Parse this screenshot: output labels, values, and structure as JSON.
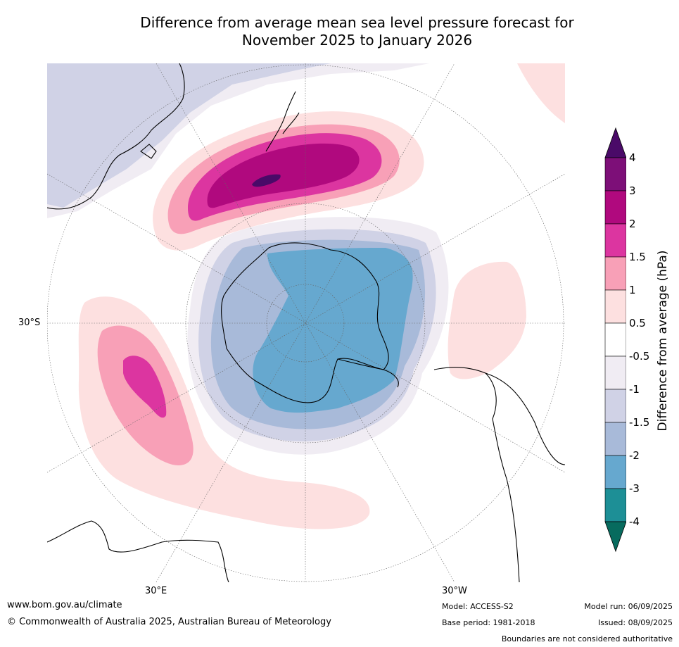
{
  "title": {
    "line1": "Difference from average mean sea level pressure forecast for",
    "line2": "November 2025 to January 2026"
  },
  "map": {
    "projection": "south-polar stereographic",
    "graticule_labels": {
      "lat_left": "30°S",
      "lon_bottom_left": "30°E",
      "lon_bottom_right": "30°W"
    }
  },
  "colorbar": {
    "title": "Difference from average (hPa)",
    "ticks": [
      "4",
      "3",
      "2",
      "1.5",
      "1",
      "0.5",
      "-0.5",
      "-1",
      "-1.5",
      "-2",
      "-3",
      "-4"
    ],
    "colors": {
      "gt4": "#4a0a68",
      "3_to_4": "#7d0f78",
      "2_to_3": "#b0097e",
      "1.5_to_2": "#dc35a0",
      "1_to_1.5": "#f8a0b7",
      "0.5_to_1": "#fde0e0",
      "-0.5_to_0.5": "#ffffff",
      "-1_to_-0.5": "#f0ecf3",
      "-1.5_to_-1": "#d0d2e6",
      "-2_to_-1.5": "#a8bad9",
      "-3_to_-2": "#66a8cf",
      "-4_to_-3": "#1d8f96",
      "lt-4": "#076b5e"
    }
  },
  "footer": {
    "website": "www.bom.gov.au/climate",
    "copyright": "© Commonwealth of Australia 2025, Australian Bureau of Meteorology",
    "model": "Model: ACCESS-S2",
    "base_period": "Base period: 1981-2018",
    "model_run": "Model run: 06/09/2025",
    "issued": "Issued: 08/09/2025",
    "disclaimer": "Boundaries are not considered authoritative"
  }
}
